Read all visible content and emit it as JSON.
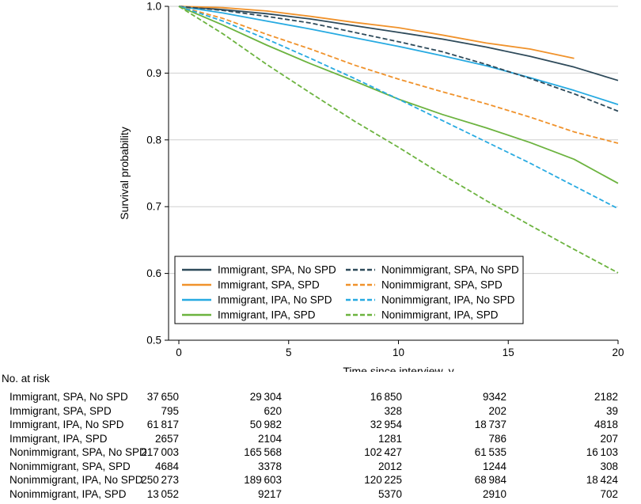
{
  "chart_data": {
    "type": "line",
    "xlabel": "Time since interview, y",
    "ylabel": "Survival probability",
    "xlim": [
      0,
      20
    ],
    "ylim": [
      0.5,
      1.0
    ],
    "xticks": [
      "0",
      "5",
      "10",
      "15",
      "20"
    ],
    "yticks": [
      "0.5",
      "0.6",
      "0.7",
      "0.8",
      "0.9",
      "1.0"
    ],
    "grid": "horizontal",
    "legend_position": "lower-center",
    "series": [
      {
        "name": "Immigrant, SPA, No SPD",
        "color": "#2e4a5a",
        "dash": "solid",
        "x": [
          0,
          2,
          4,
          6,
          8,
          10,
          12,
          14,
          16,
          18,
          20
        ],
        "y": [
          1.0,
          0.995,
          0.989,
          0.981,
          0.971,
          0.961,
          0.951,
          0.939,
          0.925,
          0.909,
          0.889
        ]
      },
      {
        "name": "Immigrant, SPA, SPD",
        "color": "#f0922b",
        "dash": "solid",
        "x": [
          0,
          2,
          4,
          6,
          8,
          10,
          12,
          14,
          16,
          18
        ],
        "y": [
          1.0,
          0.998,
          0.993,
          0.985,
          0.976,
          0.968,
          0.957,
          0.945,
          0.936,
          0.922
        ]
      },
      {
        "name": "Immigrant, IPA, No SPD",
        "color": "#27aae1",
        "dash": "solid",
        "x": [
          0,
          2,
          4,
          6,
          8,
          10,
          12,
          14,
          16,
          18,
          20
        ],
        "y": [
          1.0,
          0.99,
          0.978,
          0.966,
          0.953,
          0.94,
          0.926,
          0.911,
          0.893,
          0.874,
          0.853
        ]
      },
      {
        "name": "Immigrant, IPA, SPD",
        "color": "#6cb33f",
        "dash": "solid",
        "x": [
          0,
          2,
          4,
          6,
          8,
          10,
          12,
          14,
          16,
          18,
          20
        ],
        "y": [
          1.0,
          0.972,
          0.942,
          0.914,
          0.888,
          0.861,
          0.838,
          0.818,
          0.796,
          0.771,
          0.735
        ]
      },
      {
        "name": "Nonimmigrant, SPA, No SPD",
        "color": "#2e4a5a",
        "dash": "dashed",
        "x": [
          0,
          2,
          4,
          6,
          8,
          10,
          12,
          14,
          16,
          18,
          20
        ],
        "y": [
          1.0,
          0.994,
          0.985,
          0.975,
          0.961,
          0.947,
          0.932,
          0.913,
          0.892,
          0.869,
          0.843
        ]
      },
      {
        "name": "Nonimmigrant, SPA, SPD",
        "color": "#f0922b",
        "dash": "dashed",
        "x": [
          0,
          2,
          4,
          6,
          8,
          10,
          12,
          14,
          16,
          18,
          20
        ],
        "y": [
          1.0,
          0.982,
          0.958,
          0.936,
          0.912,
          0.891,
          0.872,
          0.854,
          0.834,
          0.812,
          0.795
        ]
      },
      {
        "name": "Nonimmigrant, IPA, No SPD",
        "color": "#27aae1",
        "dash": "dashed",
        "x": [
          0,
          2,
          4,
          6,
          8,
          10,
          12,
          14,
          16,
          18,
          20
        ],
        "y": [
          1.0,
          0.978,
          0.951,
          0.922,
          0.892,
          0.861,
          0.829,
          0.797,
          0.765,
          0.731,
          0.697
        ]
      },
      {
        "name": "Nonimmigrant, IPA, SPD",
        "color": "#6cb33f",
        "dash": "dashed",
        "x": [
          0,
          2,
          4,
          6,
          8,
          10,
          12,
          14,
          16,
          18,
          20
        ],
        "y": [
          1.0,
          0.959,
          0.913,
          0.87,
          0.828,
          0.789,
          0.748,
          0.709,
          0.672,
          0.636,
          0.601
        ]
      }
    ]
  },
  "risk_table": {
    "title": "No. at risk",
    "rows": [
      {
        "label": "Immigrant, SPA, No SPD",
        "values": [
          "37 650",
          "29 304",
          "16 850",
          "9342",
          "2182"
        ]
      },
      {
        "label": "Immigrant, SPA, SPD",
        "values": [
          "795",
          "620",
          "328",
          "202",
          "39"
        ]
      },
      {
        "label": "Immigrant, IPA, No SPD",
        "values": [
          "61 817",
          "50 982",
          "32 954",
          "18 737",
          "4818"
        ]
      },
      {
        "label": "Immigrant, IPA, SPD",
        "values": [
          "2657",
          "2104",
          "1281",
          "786",
          "207"
        ]
      },
      {
        "label": "Nonimmigrant, SPA, No SPD",
        "values": [
          "217 003",
          "165 568",
          "102 427",
          "61 535",
          "16 103"
        ]
      },
      {
        "label": "Nonimmigrant, SPA, SPD",
        "values": [
          "4684",
          "3378",
          "2012",
          "1244",
          "308"
        ]
      },
      {
        "label": "Nonimmigrant, IPA, No SPD",
        "values": [
          "250 273",
          "189 603",
          "120 225",
          "68 984",
          "18 424"
        ]
      },
      {
        "label": "Nonimmigrant, IPA, SPD",
        "values": [
          "13 052",
          "9217",
          "5370",
          "2910",
          "702"
        ]
      }
    ]
  }
}
